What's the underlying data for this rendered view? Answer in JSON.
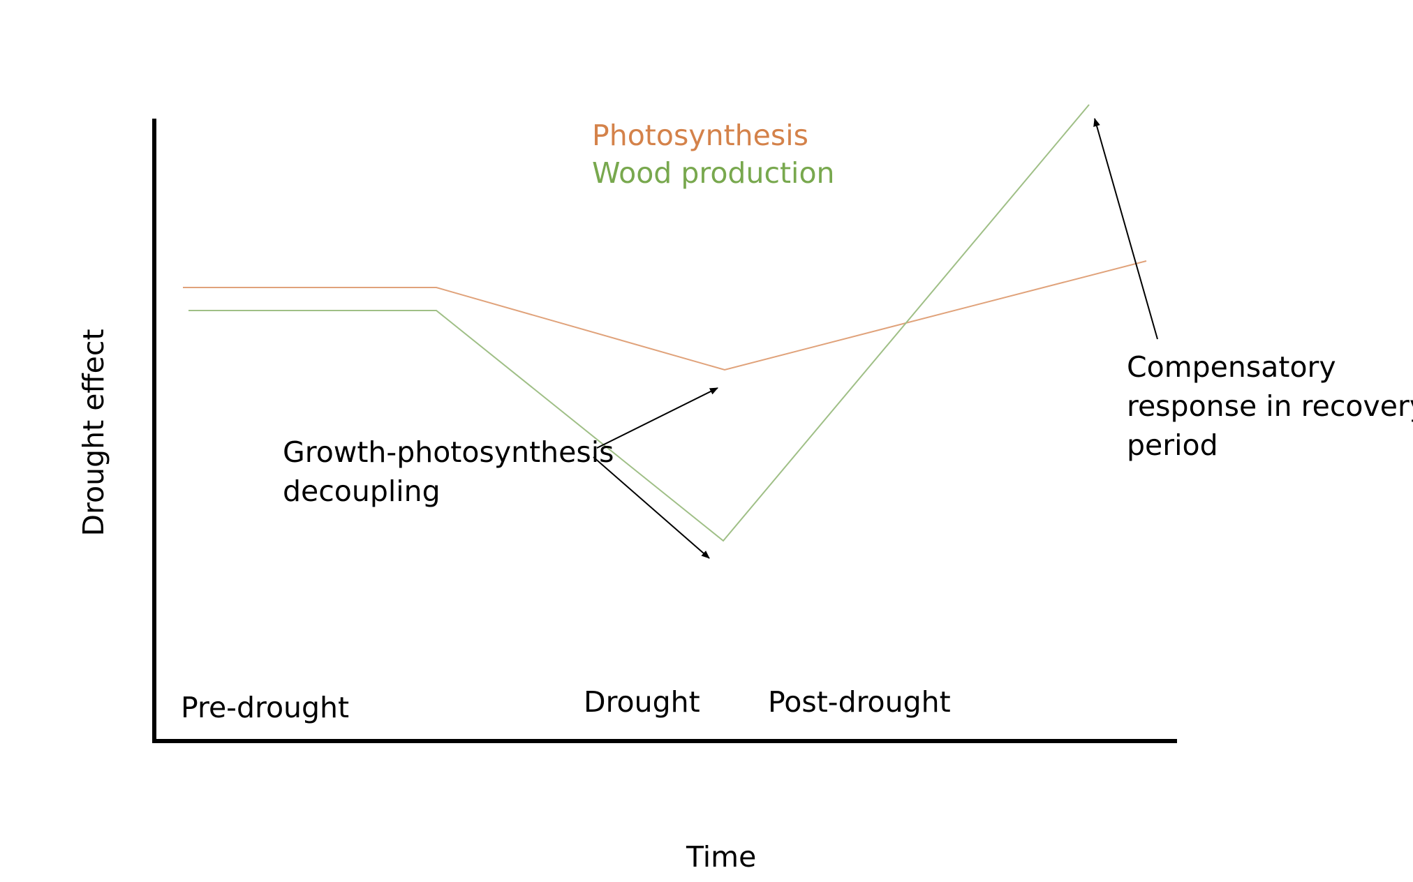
{
  "legend": {
    "photosynthesis": "Photosynthesis",
    "wood_production": "Wood production"
  },
  "axes": {
    "x_label": "Time",
    "y_label": "Drought effect"
  },
  "phases": {
    "pre_drought": "Pre-drought",
    "drought": "Drought",
    "post_drought": "Post-drought"
  },
  "annotations": {
    "decoupling_line1": "Growth-photosynthesis",
    "decoupling_line2": "decoupling",
    "compensatory_line1": "Compensatory",
    "compensatory_line2": "response in recovery",
    "compensatory_line3": "period"
  },
  "colors": {
    "photosynthesis": "#e0a27a",
    "wood_production": "#9fbf86",
    "axis": "#000000",
    "arrow": "#000000"
  }
}
